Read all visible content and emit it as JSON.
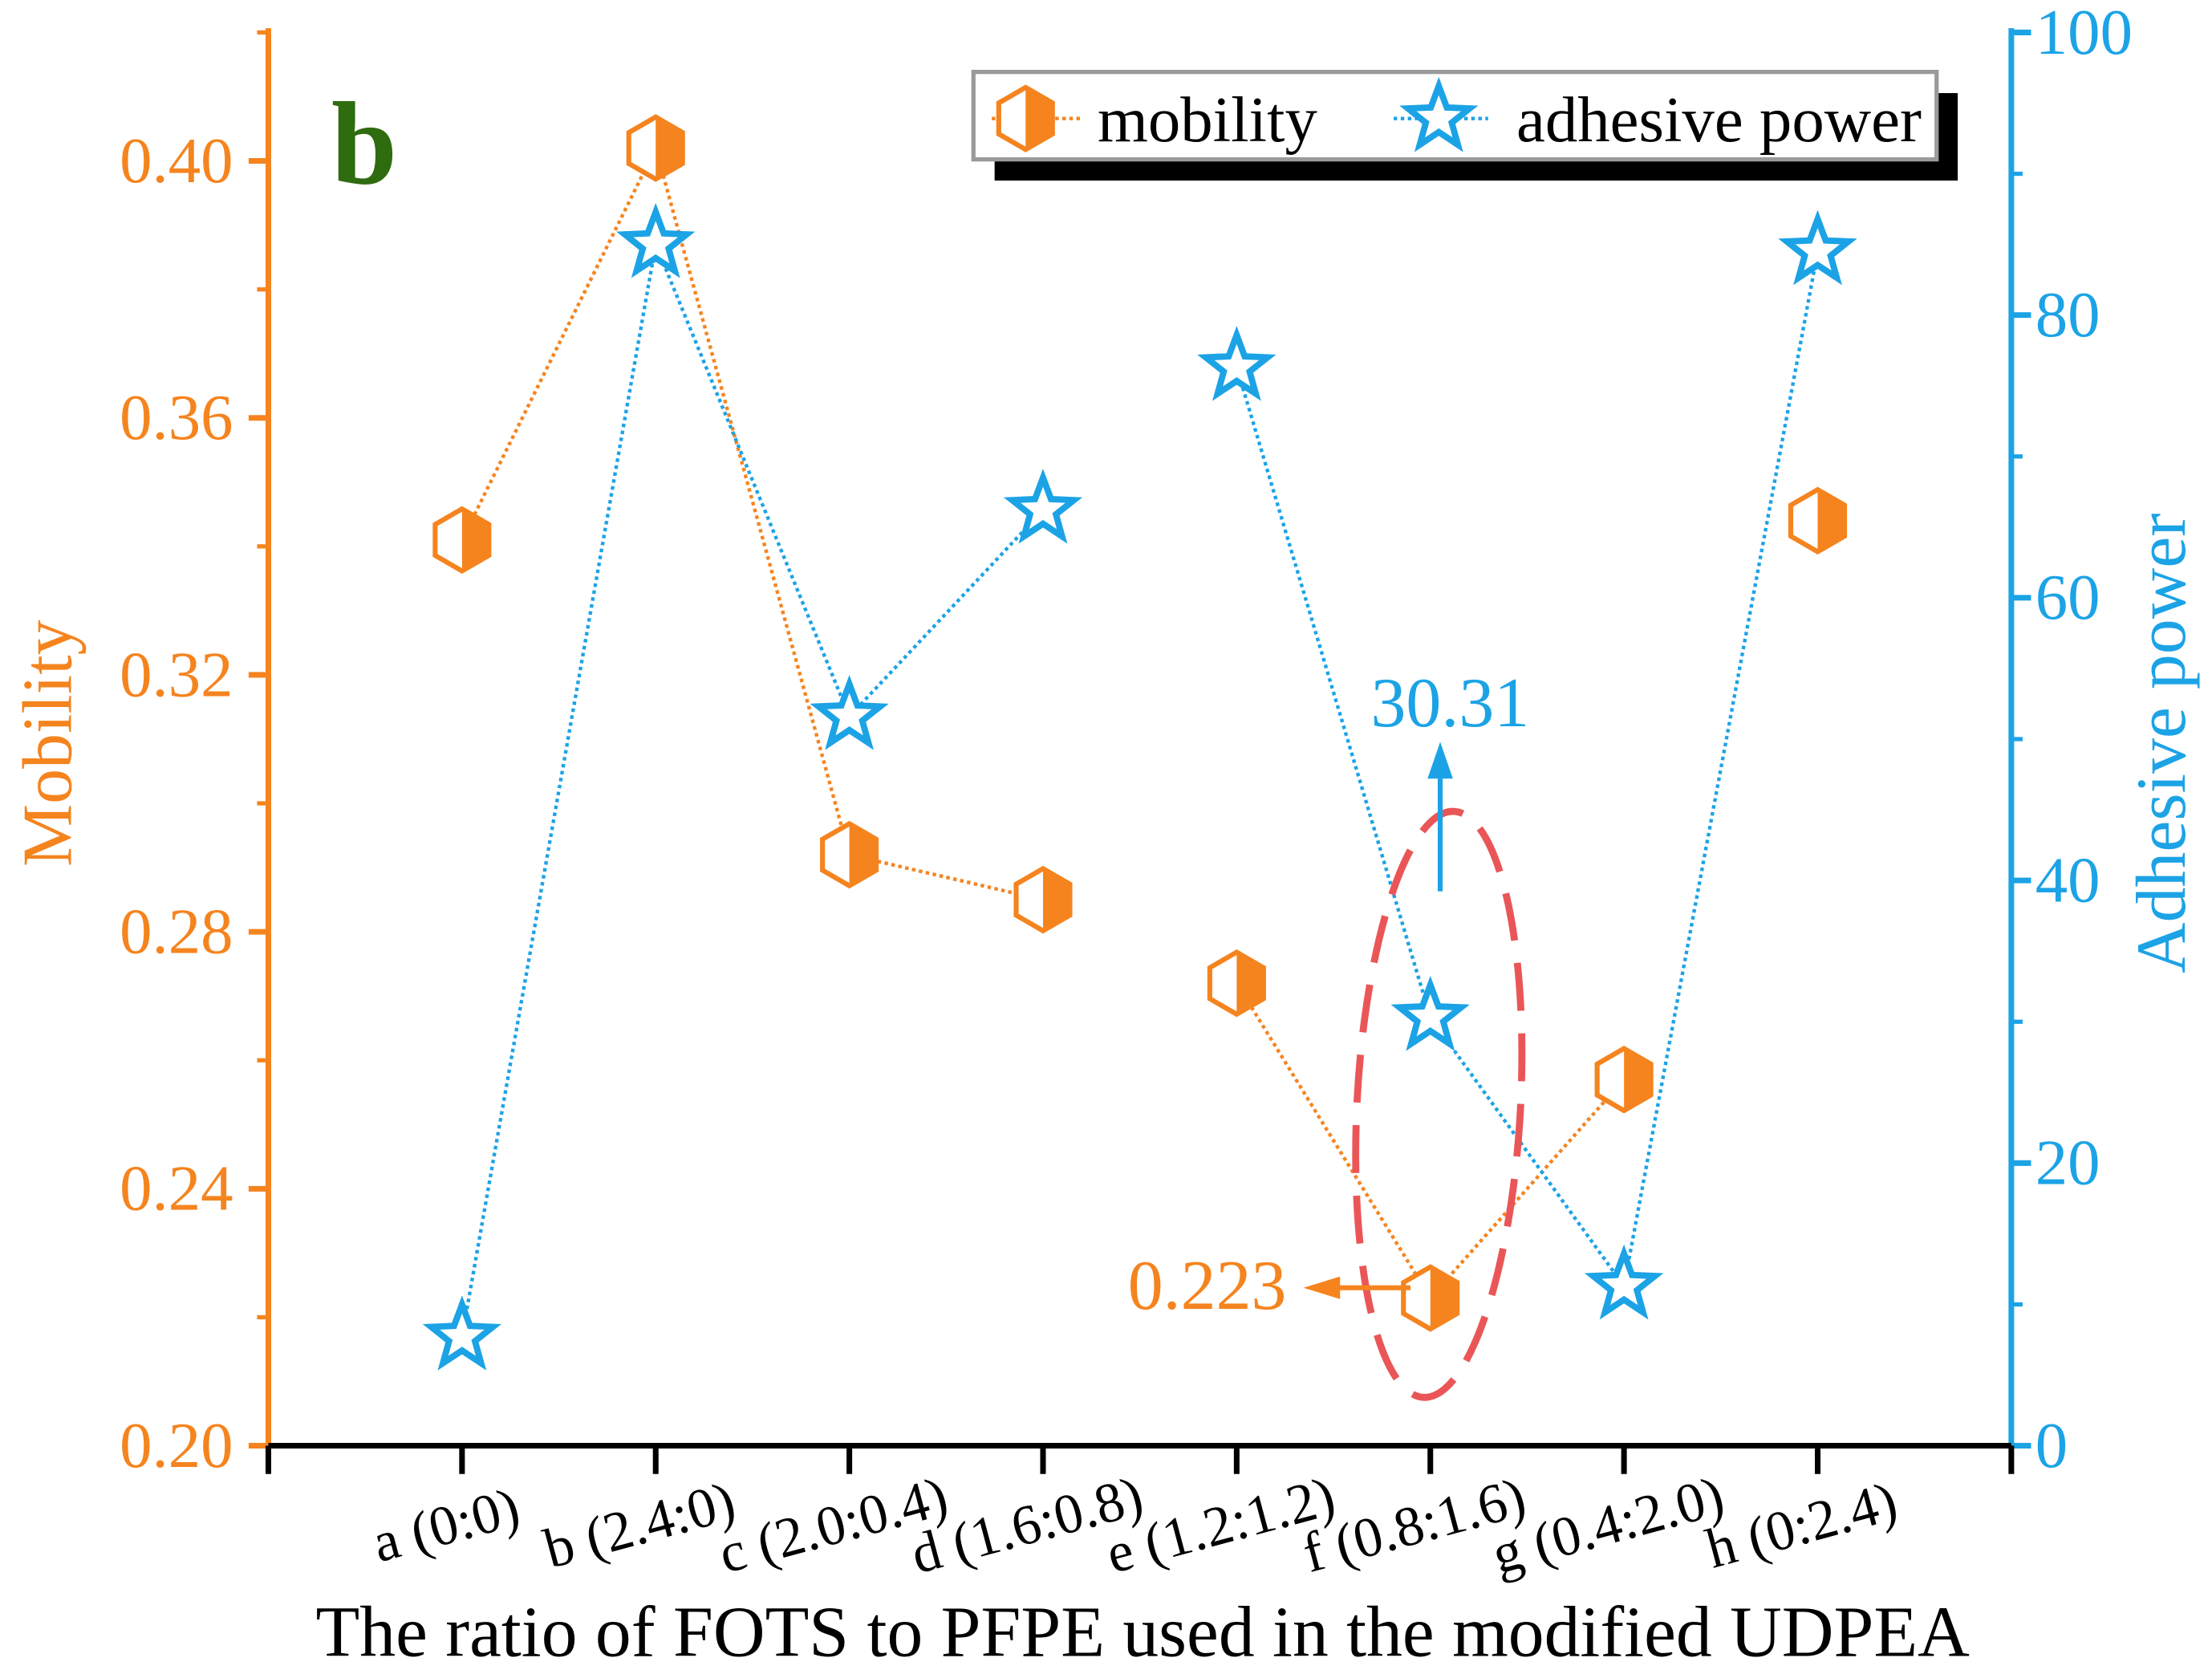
{
  "chart_data": {
    "type": "line",
    "panel_label": "b",
    "panel_label_color": "#2F6B0F",
    "xlabel": "The ratio of FOTS to PFPE used in the modified UDPEA",
    "categories": [
      "a (0:0)",
      "b (2.4:0)",
      "c (2.0:0.4)",
      "d (1.6:0.8)",
      "e (1.2:1.2)",
      "f (0.8:1.6)",
      "g (0.4:2.0)",
      "h (0:2.4)"
    ],
    "xlim": [
      0,
      9
    ],
    "y_left": {
      "label": "Mobility",
      "ylim": [
        0.2,
        0.42
      ],
      "ticks": [
        "0.20",
        "0.24",
        "0.28",
        "0.32",
        "0.36",
        "0.40"
      ],
      "color": "#F5841F"
    },
    "y_right": {
      "label": "Adhesive power",
      "ylim": [
        0,
        100
      ],
      "ticks": [
        "0",
        "20",
        "40",
        "60",
        "80",
        "100"
      ],
      "color": "#1CA3E6"
    },
    "series": [
      {
        "name": "mobility",
        "y_axis": "left",
        "values": [
          0.341,
          0.402,
          0.292,
          0.285,
          0.272,
          0.223,
          0.257,
          0.344
        ],
        "color": "#F5841F",
        "marker": "half-filled-hexagon",
        "connected_ranges": [
          [
            0,
            3
          ],
          [
            4,
            6
          ]
        ]
      },
      {
        "name": "adhesive power",
        "y_axis": "right",
        "values": [
          7.7,
          85.0,
          51.6,
          66.2,
          76.3,
          30.31,
          11.3,
          84.5
        ],
        "color": "#1CA3E6",
        "marker": "hollow-star",
        "connected_ranges": [
          [
            0,
            3
          ],
          [
            4,
            7
          ]
        ]
      }
    ],
    "annotations": [
      {
        "text": "30.31",
        "series_index": 1,
        "category_index": 5,
        "color": "#1CA3E6"
      },
      {
        "text": "0.223",
        "series_index": 0,
        "category_index": 5,
        "color": "#F5841F"
      }
    ],
    "highlight": {
      "category_index": 5,
      "color": "#EA5658"
    },
    "legend": {
      "position": "top-right"
    }
  }
}
